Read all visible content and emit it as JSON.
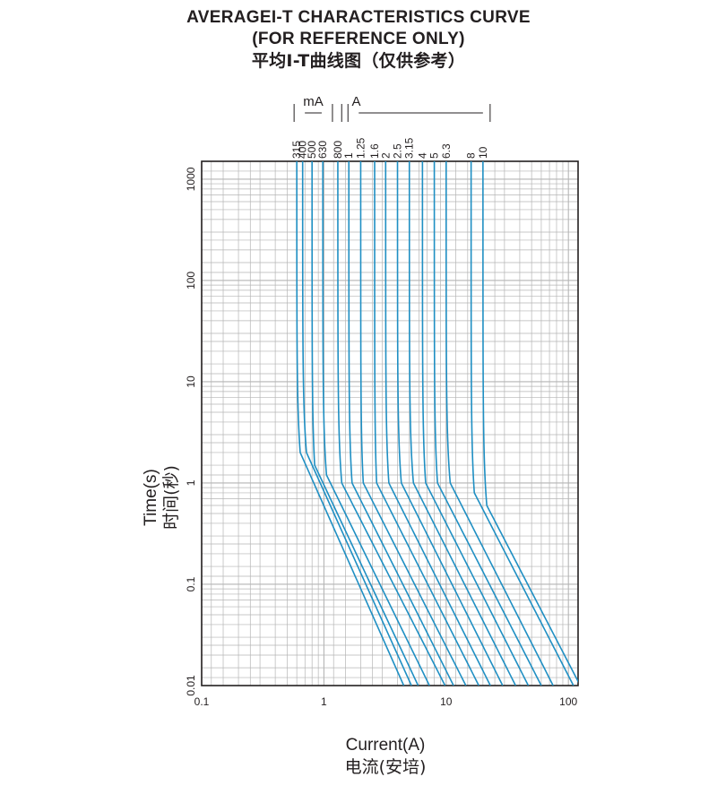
{
  "titles": {
    "line1": "AVERAGEI-T CHARACTERISTICS CURVE",
    "line2": "(FOR REFERENCE ONLY)",
    "line3": "平均I-T曲线图（仅供参考）"
  },
  "axes": {
    "ylabel_en": "Time(s)",
    "ylabel_cn": "时间(秒)",
    "xlabel_en": "Current(A)",
    "xlabel_cn": "电流(安培)"
  },
  "colors": {
    "curve": "#1f8fc3",
    "grid": "#b5b5b5",
    "frame": "#231f20"
  },
  "chart_data": {
    "type": "line",
    "x_scale": "log",
    "y_scale": "log",
    "xlim": [
      0.1,
      120
    ],
    "ylim": [
      0.01,
      1500
    ],
    "x_ticks": [
      "0.1",
      "1",
      "10",
      "100"
    ],
    "y_ticks": [
      "0.01",
      "0.1",
      "1",
      "10",
      "100",
      "1000"
    ],
    "grid": true,
    "unit_groups": [
      {
        "label": "mA",
        "ratings": [
          "315",
          "400",
          "500",
          "630",
          "800"
        ]
      },
      {
        "label": "A",
        "ratings": [
          "1",
          "1.25",
          "1.6",
          "2",
          "2.5",
          "3.15",
          "4",
          "5",
          "6.3",
          "8",
          "10"
        ]
      }
    ],
    "series": [
      {
        "name": "315",
        "i_min": 0.6,
        "i_knee": 0.64,
        "t_knee": 2.0,
        "i_end": 4.5
      },
      {
        "name": "400",
        "i_min": 0.67,
        "i_knee": 0.72,
        "t_knee": 2.0,
        "i_end": 5.2
      },
      {
        "name": "500",
        "i_min": 0.8,
        "i_knee": 0.84,
        "t_knee": 1.5,
        "i_end": 5.9
      },
      {
        "name": "630",
        "i_min": 0.98,
        "i_knee": 1.05,
        "t_knee": 1.2,
        "i_end": 7.3
      },
      {
        "name": "800",
        "i_min": 1.3,
        "i_knee": 1.4,
        "t_knee": 1.0,
        "i_end": 9.8
      },
      {
        "name": "1",
        "i_min": 1.6,
        "i_knee": 1.7,
        "t_knee": 1.0,
        "i_end": 11.5
      },
      {
        "name": "1.25",
        "i_min": 2.0,
        "i_knee": 2.1,
        "t_knee": 1.0,
        "i_end": 14.5
      },
      {
        "name": "1.6",
        "i_min": 2.6,
        "i_knee": 2.7,
        "t_knee": 1.0,
        "i_end": 18.5
      },
      {
        "name": "2",
        "i_min": 3.2,
        "i_knee": 3.4,
        "t_knee": 1.0,
        "i_end": 23.0
      },
      {
        "name": "2.5",
        "i_min": 4.0,
        "i_knee": 4.3,
        "t_knee": 1.0,
        "i_end": 29.0
      },
      {
        "name": "3.15",
        "i_min": 5.0,
        "i_knee": 5.4,
        "t_knee": 1.0,
        "i_end": 37.0
      },
      {
        "name": "4",
        "i_min": 6.4,
        "i_knee": 6.8,
        "t_knee": 1.0,
        "i_end": 47.0
      },
      {
        "name": "5",
        "i_min": 8.0,
        "i_knee": 8.5,
        "t_knee": 1.0,
        "i_end": 60.0
      },
      {
        "name": "6.3",
        "i_min": 10.0,
        "i_knee": 10.8,
        "t_knee": 1.0,
        "i_end": 75.0
      },
      {
        "name": "8",
        "i_min": 16.0,
        "i_knee": 17.0,
        "t_knee": 0.8,
        "i_end": 110.0
      },
      {
        "name": "10",
        "i_min": 20.0,
        "i_knee": 21.5,
        "t_knee": 0.6,
        "i_end": 125.0
      }
    ]
  }
}
